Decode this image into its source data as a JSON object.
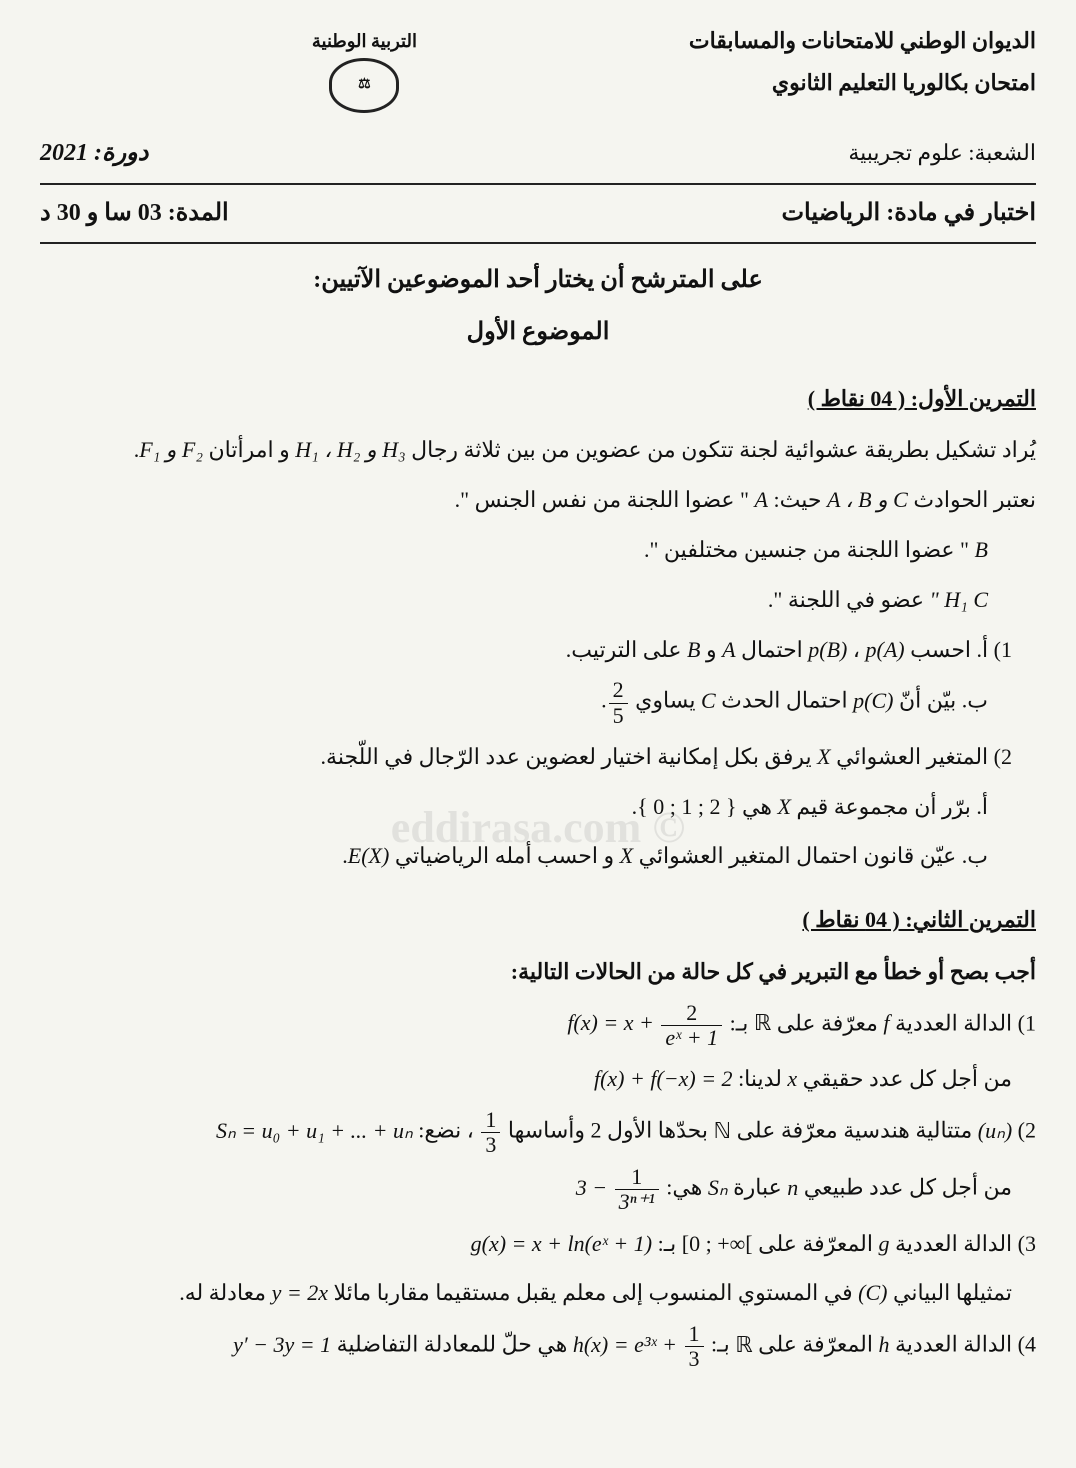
{
  "header": {
    "authority": "الديوان الوطني للامتحانات والمسابقات",
    "ministry_fragment": "التربية الوطنية",
    "exam": "امتحان بكالوريا التعليم الثانوي",
    "branch_label": "الشعبة:",
    "branch_value": "علوم تجريبية",
    "session_label": "دورة:",
    "session_year": "2021",
    "subject_label": "اختبار في مادة:",
    "subject_value": "الرياضيات",
    "duration_label": "المدة:",
    "duration_value": "03 سا و 30 د"
  },
  "instruction": "على المترشح أن يختار أحد الموضوعين الآتيين:",
  "topic_title": "الموضوع الأول",
  "ex1": {
    "title": "التمرين الأول: ( 04 نقاط )",
    "intro_1a": "يُراد تشكيل بطريقة عشوائية لجنة تتكون من عضوين من بين ثلاثة رجال ",
    "intro_1_h": "H₁ ، H₂ و H₃",
    "intro_1b": " و امرأتان ",
    "intro_1_f": "F₁ و F₂",
    "intro_2a": "نعتبر الحوادث ",
    "intro_2_abc": "A ، B و C",
    "intro_2b": " حيث: ",
    "intro_2_A": "A",
    "intro_2c": " \" عضوا اللجنة من نفس الجنس \".",
    "line_B_sym": "B",
    "line_B_txt": " \" عضوا اللجنة من جنسين مختلفين \".",
    "line_C_sym": "C",
    "line_C_h1": " \" H₁",
    "line_C_txt": " عضو في اللجنة \".",
    "q1a_num": "1) أ.",
    "q1a_txt1": " احسب ",
    "q1a_pA": "p(A)",
    "q1a_sep": " ، ",
    "q1a_pB": "p(B)",
    "q1a_txt2": " احتمال ",
    "q1a_A": "A",
    "q1a_and": " و ",
    "q1a_Bsym": "B",
    "q1a_txt3": " على الترتيب.",
    "q1b_lbl": "ب.",
    "q1b_txt1": " بيّن أنّ ",
    "q1b_pC": "p(C)",
    "q1b_txt2": " احتمال الحدث ",
    "q1b_C": "C",
    "q1b_txt3": " يساوي ",
    "q1b_frac_num": "2",
    "q1b_frac_den": "5",
    "q2_num": "2)",
    "q2_txt1": " المتغير العشوائي ",
    "q2_X": "X",
    "q2_txt2": " يرفق بكل إمكانية اختيار لعضوين عدد الرّجال في اللّجنة.",
    "q2a_lbl": "أ.",
    "q2a_txt1": " برّر أن مجموعة قيم ",
    "q2a_X": "X",
    "q2a_txt2": " هي ",
    "q2a_set": "{ 0 ; 1 ; 2 }",
    "q2b_lbl": "ب.",
    "q2b_txt1": " عيّن قانون احتمال المتغير العشوائي ",
    "q2b_X": "X",
    "q2b_txt2": " و احسب أمله الرياضياتي ",
    "q2b_EX": "E(X)"
  },
  "ex2": {
    "title": "التمرين الثاني: ( 04 نقاط )",
    "intro": "أجب بصح أو خطأ مع التبرير في كل حالة من الحالات التالية:",
    "q1_num": "1)",
    "q1_txt1": " الدالة العددية ",
    "q1_f": "f",
    "q1_txt2": " معرّفة على ",
    "q1_R": "ℝ",
    "q1_txt3": " بـ: ",
    "q1_eq_lhs": "f(x) = x +",
    "q1_frac_num": "2",
    "q1_frac_den": "eˣ + 1",
    "q1_line2a": "من أجل كل عدد حقيقي ",
    "q1_x": "x",
    "q1_line2b": " لدينا: ",
    "q1_eq2": "f(x) + f(−x) = 2",
    "q2_num": "2)",
    "q2_un": "(uₙ)",
    "q2_txt1": " متتالية هندسية معرّفة على ",
    "q2_N": "ℕ",
    "q2_txt2": " بحدّها الأول 2 وأساسها ",
    "q2_frac1_num": "1",
    "q2_frac1_den": "3",
    "q2_txt3": " ، نضع: ",
    "q2_Sn": "Sₙ = u₀ + u₁ + ... + uₙ",
    "q2_line2a": "من أجل كل عدد طبيعي ",
    "q2_n": "n",
    "q2_line2b": " عبارة ",
    "q2_Snsym": "Sₙ",
    "q2_line2c": " هي: ",
    "q2_expr_a": "3 −",
    "q2_frac2_num": "1",
    "q2_frac2_den": "3ⁿ⁺¹",
    "q3_num": "3)",
    "q3_txt1": " الدالة العددية ",
    "q3_g": "g",
    "q3_txt2": " المعرّفة على ",
    "q3_int": "[0 ; +∞[",
    "q3_txt3": " بـ: ",
    "q3_eq": "g(x) = x + ln(eˣ + 1)",
    "q3_line2a": "تمثيلها البياني ",
    "q3_Csym": "(C)",
    "q3_line2b": " في المستوي المنسوب إلى معلم يقبل مستقيما مقاربا مائلا ",
    "q3_asym": "y = 2x",
    "q3_line2c": " معادلة له.",
    "q4_num": "4)",
    "q4_txt1": " الدالة العددية ",
    "q4_h": "h",
    "q4_txt2": " المعرّفة على ",
    "q4_R": "ℝ",
    "q4_txt3": " بـ: ",
    "q4_eq_lhs": "h(x) = e³ˣ +",
    "q4_frac_num": "1",
    "q4_frac_den": "3",
    "q4_txt4": " هي حلّ للمعادلة التفاضلية ",
    "q4_ode": "y′ − 3y = 1"
  },
  "watermark": "© eddirasa.com",
  "colors": {
    "text": "#111111",
    "bg": "#f5f5f0",
    "line": "#222222"
  }
}
